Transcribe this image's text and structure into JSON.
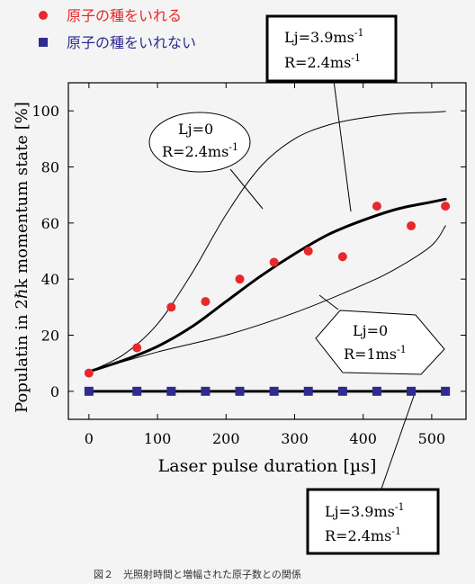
{
  "legend": {
    "items": [
      {
        "label": "原子の種をいれる",
        "color": "#e8282c",
        "marker": "circle"
      },
      {
        "label": "原子の種をいれない",
        "color": "#2f2b8f",
        "marker": "square"
      }
    ]
  },
  "annotations": {
    "box_top": {
      "line1": "Lj=3.9ms",
      "line1_sup": "-1",
      "line2": "R=2.4ms",
      "line2_sup": "-1"
    },
    "ellipse": {
      "line1": "Lj=0",
      "line2": "R=2.4ms",
      "line2_sup": "-1"
    },
    "hexagon": {
      "line1": "Lj=0",
      "line2": "R=1ms",
      "line2_sup": "-1"
    },
    "box_bottom": {
      "line1": "Lj=3.9ms",
      "line1_sup": "-1",
      "line2": "R=2.4ms",
      "line2_sup": "-1"
    }
  },
  "caption": "図２　光照射時間と増幅された原子数との関係",
  "chart_data": {
    "type": "scatter",
    "xlabel": "Laser pulse duration [µs]",
    "ylabel": "Populatin in 2ℏk momentum state [%]",
    "xlim": [
      -30,
      550
    ],
    "ylim": [
      -10,
      110
    ],
    "xticks": [
      0,
      100,
      200,
      300,
      400,
      500
    ],
    "yticks": [
      0,
      20,
      40,
      60,
      80,
      100
    ],
    "series": [
      {
        "name": "原子の種をいれる",
        "kind": "points",
        "color": "#e8282c",
        "x": [
          0,
          70,
          120,
          170,
          220,
          270,
          320,
          370,
          420,
          470,
          520
        ],
        "y": [
          6.5,
          15.5,
          30,
          32,
          40,
          46,
          50,
          48,
          66,
          59,
          66
        ]
      },
      {
        "name": "原子の種をいれない",
        "kind": "points",
        "color": "#2f2b8f",
        "x": [
          0,
          70,
          120,
          170,
          220,
          270,
          320,
          370,
          420,
          470,
          520
        ],
        "y": [
          0,
          0,
          0,
          0,
          0,
          0,
          0,
          0,
          0,
          0,
          0
        ]
      },
      {
        "kind": "curve",
        "label": "Lj=3.9ms-1, R=2.4ms-1",
        "width": 3,
        "x": [
          0,
          50,
          100,
          150,
          200,
          250,
          300,
          350,
          400,
          450,
          500,
          520
        ],
        "y": [
          7,
          11,
          16,
          23,
          32,
          41,
          49,
          56,
          61,
          65,
          67.5,
          68.5
        ]
      },
      {
        "kind": "curve",
        "label": "Lj=0, R=2.4ms-1",
        "width": 1,
        "x": [
          0,
          50,
          100,
          150,
          200,
          250,
          300,
          350,
          400,
          450,
          500,
          520
        ],
        "y": [
          7,
          13,
          24,
          42,
          63,
          80,
          90,
          95,
          97.5,
          99,
          99.5,
          99.8
        ]
      },
      {
        "kind": "curve",
        "label": "Lj=0, R=1ms-1",
        "width": 1,
        "x": [
          0,
          100,
          200,
          300,
          400,
          450,
          500,
          520
        ],
        "y": [
          7,
          14,
          20,
          28,
          38,
          44,
          52,
          59
        ]
      },
      {
        "kind": "curve",
        "label": "Lj=3.9ms-1, R=2.4ms-1 (no seed)",
        "width": 3,
        "x": [
          0,
          520
        ],
        "y": [
          0,
          0
        ]
      }
    ]
  }
}
